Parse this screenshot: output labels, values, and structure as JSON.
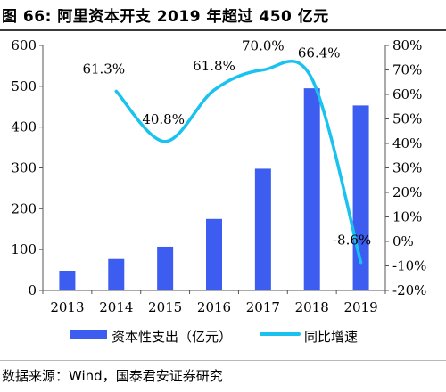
{
  "header": {
    "title": "图 66: 阿里资本开支 2019 年超过 450 亿元"
  },
  "footer": {
    "source": "数据来源：Wind，国泰君安证券研究"
  },
  "colors": {
    "bar": "#3d5df0",
    "line": "#19c2ef",
    "header_rule": "#3a3a3a",
    "axis": "#555555"
  },
  "chart_data": {
    "type": "bar+line",
    "categories": [
      "2013",
      "2014",
      "2015",
      "2016",
      "2017",
      "2018",
      "2019"
    ],
    "series": [
      {
        "name": "资本性支出（亿元）",
        "type": "bar",
        "axis": "left",
        "values": [
          48,
          77,
          107,
          175,
          298,
          495,
          453
        ]
      },
      {
        "name": "同比增速",
        "type": "line",
        "axis": "right",
        "values": [
          null,
          61.3,
          40.8,
          61.8,
          70.0,
          66.4,
          -8.6
        ],
        "labels": [
          "",
          "61.3%",
          "40.8%",
          "61.8%",
          "70.0%",
          "66.4%",
          "-8.6%"
        ]
      }
    ],
    "y_left": {
      "min": 0,
      "max": 600,
      "ticks": [
        0,
        100,
        200,
        300,
        400,
        500,
        600
      ],
      "tick_labels": [
        "0",
        "100",
        "200",
        "300",
        "400",
        "500",
        "600"
      ]
    },
    "y_right": {
      "min": -20,
      "max": 80,
      "ticks": [
        -20,
        -10,
        0,
        10,
        20,
        30,
        40,
        50,
        60,
        70,
        80
      ],
      "tick_labels": [
        "-20%",
        "-10%",
        "0%",
        "10%",
        "20%",
        "30%",
        "40%",
        "50%",
        "60%",
        "70%",
        "80%"
      ]
    },
    "grid": false,
    "legend_position": "bottom"
  }
}
